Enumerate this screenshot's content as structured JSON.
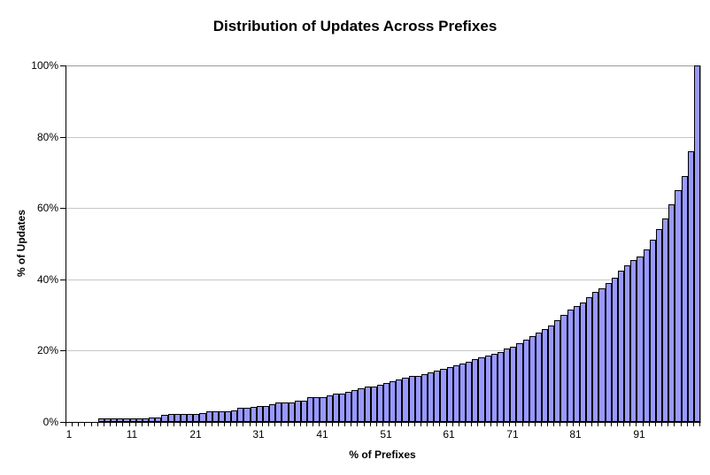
{
  "chart_data": {
    "type": "bar",
    "title": "Distribution of Updates Across Prefixes",
    "xlabel": "% of Prefixes",
    "ylabel": "% of Updates",
    "legend": "none",
    "grid": "horizontal gridlines every 20%",
    "ylim": [
      0,
      100
    ],
    "x": [
      1,
      2,
      3,
      4,
      5,
      6,
      7,
      8,
      9,
      10,
      11,
      12,
      13,
      14,
      15,
      16,
      17,
      18,
      19,
      20,
      21,
      22,
      23,
      24,
      25,
      26,
      27,
      28,
      29,
      30,
      31,
      32,
      33,
      34,
      35,
      36,
      37,
      38,
      39,
      40,
      41,
      42,
      43,
      44,
      45,
      46,
      47,
      48,
      49,
      50,
      51,
      52,
      53,
      54,
      55,
      56,
      57,
      58,
      59,
      60,
      61,
      62,
      63,
      64,
      65,
      66,
      67,
      68,
      69,
      70,
      71,
      72,
      73,
      74,
      75,
      76,
      77,
      78,
      79,
      80,
      81,
      82,
      83,
      84,
      85,
      86,
      87,
      88,
      89,
      90,
      91,
      92,
      93,
      94,
      95,
      96,
      97,
      98,
      99,
      100
    ],
    "values": [
      0,
      0,
      0,
      0,
      0,
      1,
      1,
      1,
      1,
      1,
      1,
      1,
      1,
      1.3,
      1.3,
      2,
      2.2,
      2.2,
      2.2,
      2.2,
      2.2,
      2.5,
      3,
      3,
      3,
      3,
      3.3,
      4,
      4,
      4.2,
      4.5,
      4.5,
      5,
      5.5,
      5.5,
      5.5,
      6,
      6,
      7,
      7,
      7,
      7.5,
      8,
      8,
      8.5,
      9,
      9.5,
      10,
      10,
      10.5,
      11,
      11.5,
      12,
      12.5,
      13,
      13,
      13.5,
      14,
      14.5,
      15,
      15.5,
      16,
      16.5,
      17,
      17.5,
      18,
      18.5,
      19,
      19.5,
      20.5,
      21,
      22,
      23,
      24,
      25,
      26,
      27,
      28.5,
      30,
      31.5,
      32.5,
      33.5,
      35,
      36.5,
      37.5,
      39,
      40.5,
      42.5,
      44,
      45.5,
      46.5,
      48.5,
      51,
      54,
      57,
      61,
      65,
      69,
      76,
      100
    ],
    "x_tick_labels": [
      "1",
      "11",
      "21",
      "31",
      "41",
      "51",
      "61",
      "71",
      "81",
      "91"
    ],
    "x_tick_values": [
      1,
      11,
      21,
      31,
      41,
      51,
      61,
      71,
      81,
      91
    ],
    "y_ticks": [
      0,
      20,
      40,
      60,
      80,
      100
    ],
    "y_tick_labels": [
      "0%",
      "20%",
      "40%",
      "60%",
      "80%",
      "100%"
    ],
    "colors": {
      "bar_fill": "#9999FF",
      "bar_border": "#000000",
      "gridline": "#C6C6C6",
      "top_border_gridline": "#9A9A9A",
      "axis": "#000000",
      "background": "#FFFFFF",
      "text": "#000000"
    }
  }
}
